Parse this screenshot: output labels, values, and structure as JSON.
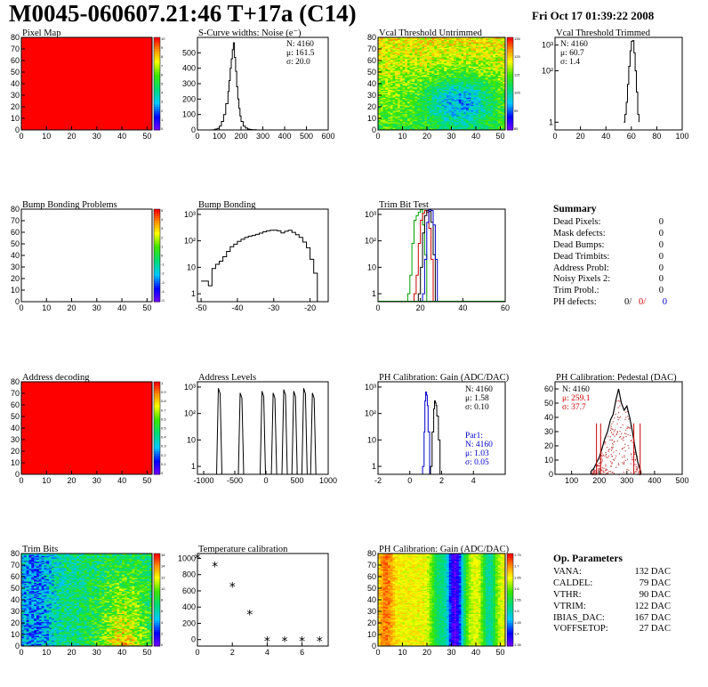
{
  "header": {
    "title": "M0045-060607.21:46 T+17a (C14)",
    "date": "Fri Oct 17 01:39:22 2008"
  },
  "panels": {
    "pixel_map": {
      "title": "Pixel Map",
      "fill": "#ff0000",
      "xticks": [
        "0",
        "10",
        "20",
        "30",
        "40",
        "50"
      ],
      "yticks": [
        "0",
        "10",
        "20",
        "30",
        "40",
        "50",
        "60",
        "70",
        "80"
      ],
      "palette_labels": [
        "10",
        "9",
        "8",
        "7",
        "6",
        "5",
        "4",
        "3",
        "2",
        "1",
        "0"
      ]
    },
    "scurve": {
      "title": "S-Curve widths: Noise (e⁻)",
      "stats": [
        "N: 4160",
        "μ: 161.5",
        "σ: 20.0"
      ],
      "xticks": [
        "0",
        "100",
        "200",
        "300",
        "400",
        "500",
        "600"
      ],
      "yticks": [
        "0",
        "100",
        "200",
        "300",
        "400",
        "500"
      ]
    },
    "vcal_untrimmed": {
      "title": "Vcal Threshold Untrimmed",
      "xticks": [
        "0",
        "10",
        "20",
        "30",
        "40",
        "50"
      ],
      "yticks": [
        "0",
        "10",
        "20",
        "30",
        "40",
        "50",
        "60",
        "70",
        "80"
      ],
      "palette_labels": [
        "135",
        "125",
        "115",
        "105",
        "95",
        "85"
      ]
    },
    "vcal_trimmed": {
      "title": "Vcal Threshold Trimmed",
      "stats": [
        "N: 4160",
        "μ: 60.7",
        "σ:  1.4"
      ],
      "xticks": [
        "0",
        "20",
        "40",
        "60",
        "80",
        "100"
      ],
      "yticks": [
        "1",
        "10²",
        "10³"
      ]
    },
    "bump_problems": {
      "title": "Bump Bonding Problems",
      "xticks": [
        "0",
        "10",
        "20",
        "30",
        "40",
        "50"
      ],
      "yticks": [
        "0",
        "10",
        "20",
        "30",
        "40",
        "50",
        "60",
        "70",
        "80"
      ],
      "palette_labels": [
        "5",
        "4",
        "3",
        "2",
        "1",
        "0",
        "-1",
        "-2",
        "-3",
        "-4",
        "-5"
      ]
    },
    "bump_bonding": {
      "title": "Bump Bonding",
      "xticks": [
        "-50",
        "-40",
        "-30",
        "-20"
      ],
      "yticks": [
        "1",
        "10",
        "10²",
        "10³"
      ]
    },
    "trim_bit_test": {
      "title": "Trim Bit Test",
      "xticks": [
        "0",
        "20",
        "40",
        "60"
      ],
      "yticks": [
        "1",
        "10",
        "10²",
        "10³"
      ]
    },
    "address_decoding": {
      "title": "Address decoding",
      "fill": "#ff0000",
      "xticks": [
        "0",
        "10",
        "20",
        "30",
        "40",
        "50"
      ],
      "yticks": [
        "0",
        "10",
        "20",
        "30",
        "40",
        "50",
        "60",
        "70",
        "80"
      ],
      "palette_labels": [
        "1",
        "0.9",
        "0.8",
        "0.7",
        "0.6",
        "0.5",
        "0.4",
        "0.3",
        "0.2",
        "0.1",
        "0"
      ]
    },
    "address_levels": {
      "title": "Address Levels",
      "xticks": [
        "-1000",
        "-500",
        "0",
        "500",
        "1000"
      ],
      "yticks": [
        "1",
        "10",
        "10²",
        "10³"
      ]
    },
    "ph_gain": {
      "title": "PH Calibration: Gain (ADC/DAC)",
      "stats": [
        "N: 4160",
        "μ: 1.58",
        "σ: 0.10"
      ],
      "stats2": [
        "Par1:",
        "N: 4160",
        "μ: 1.03",
        "σ: 0.05"
      ],
      "xticks": [
        "-2",
        "0",
        "2",
        "4"
      ],
      "yticks": [
        "1",
        "10",
        "10²",
        "10³"
      ]
    },
    "ph_pedestal": {
      "title": "PH Calibration: Pedestal (DAC)",
      "stats": [
        "N: 4160"
      ],
      "stats_red": [
        "μ: 259.1",
        "σ: 37.7"
      ],
      "xticks": [
        "100",
        "200",
        "300",
        "400",
        "500"
      ],
      "yticks": [
        "0",
        "10",
        "20",
        "30",
        "40",
        "50",
        "60"
      ]
    },
    "trim_bits": {
      "title": "Trim Bits",
      "xticks": [
        "0",
        "10",
        "20",
        "30",
        "40",
        "50"
      ],
      "yticks": [
        "0",
        "10",
        "20",
        "30",
        "40",
        "50",
        "60",
        "70",
        "80"
      ],
      "palette_labels": [
        "16",
        "14",
        "12",
        "10",
        "8",
        "6",
        "4",
        "2",
        "0"
      ]
    },
    "temperature": {
      "title": "Temperature calibration",
      "xticks": [
        "0",
        "2",
        "4",
        "6"
      ],
      "yticks": [
        "0",
        "200",
        "400",
        "600",
        "800",
        "1000"
      ]
    },
    "ph_gain_map": {
      "title": "PH Calibration: Gain (ADC/DAC)",
      "xticks": [
        "0",
        "10",
        "20",
        "30",
        "40",
        "50"
      ],
      "yticks": [
        "0",
        "10",
        "20",
        "30",
        "40",
        "50",
        "60",
        "70",
        "80"
      ],
      "palette_labels": [
        "1.75",
        "1.7",
        "1.65",
        "1.6",
        "1.55",
        "1.5",
        "1.45",
        "1.4",
        "1.35"
      ]
    }
  },
  "summary": {
    "heading": "Summary",
    "rows": [
      {
        "label": "Dead Pixels:",
        "value": "0"
      },
      {
        "label": "Mask defects:",
        "value": "0"
      },
      {
        "label": "Dead Bumps:",
        "value": "0"
      },
      {
        "label": "Dead Trimbits:",
        "value": "0"
      },
      {
        "label": "Address Probl:",
        "value": "0"
      },
      {
        "label": "Noisy Pixels 2:",
        "value": "0"
      },
      {
        "label": "Trim Probl.:",
        "value": "0"
      }
    ],
    "ph_label": "PH defects:",
    "ph_values": [
      "0/",
      "0/",
      "0"
    ],
    "ph_colors": [
      "#000000",
      "#cc0000",
      "#0000cc"
    ]
  },
  "op_params": {
    "heading": "Op. Parameters",
    "rows": [
      {
        "label": "VANA:",
        "value": "132 DAC"
      },
      {
        "label": "CALDEL:",
        "value": "79 DAC"
      },
      {
        "label": "VTHR:",
        "value": "90 DAC"
      },
      {
        "label": "VTRIM:",
        "value": "122 DAC"
      },
      {
        "label": "IBIAS_DAC:",
        "value": "167 DAC"
      },
      {
        "label": "VOFFSETOP:",
        "value": "27 DAC"
      }
    ]
  },
  "chart_data": [
    {
      "type": "heatmap",
      "title": "Pixel Map",
      "xlim": [
        0,
        52
      ],
      "ylim": [
        0,
        80
      ],
      "uniform_value": 10
    },
    {
      "type": "line",
      "title": "S-Curve widths: Noise (e⁻)",
      "xlim": [
        0,
        600
      ],
      "ylim": [
        0,
        600
      ],
      "x": [
        60,
        70,
        80,
        90,
        100,
        110,
        120,
        130,
        140,
        145,
        150,
        155,
        160,
        165,
        170,
        175,
        180,
        185,
        190,
        195,
        200,
        210,
        220,
        230,
        240,
        250,
        260,
        270
      ],
      "y": [
        0,
        2,
        5,
        10,
        25,
        55,
        100,
        170,
        250,
        320,
        400,
        460,
        520,
        565,
        470,
        380,
        280,
        200,
        140,
        90,
        55,
        25,
        12,
        6,
        3,
        2,
        1,
        0
      ]
    },
    {
      "type": "heatmap",
      "title": "Vcal Threshold Untrimmed",
      "xlim": [
        0,
        52
      ],
      "ylim": [
        0,
        80
      ],
      "zlim": [
        85,
        135
      ]
    },
    {
      "type": "line",
      "title": "Vcal Threshold Trimmed",
      "xlim": [
        0,
        100
      ],
      "log_y": true,
      "x": [
        54,
        55,
        56,
        57,
        58,
        59,
        60,
        61,
        62,
        63,
        64,
        65,
        66
      ],
      "y": [
        1,
        2,
        6,
        30,
        150,
        600,
        1400,
        1500,
        500,
        100,
        15,
        2,
        1
      ]
    },
    {
      "type": "heatmap",
      "title": "Bump Bonding Problems",
      "xlim": [
        0,
        52
      ],
      "ylim": [
        0,
        80
      ],
      "zlim": [
        -5,
        5
      ],
      "empty": true
    },
    {
      "type": "line",
      "title": "Bump Bonding",
      "xlim": [
        -51,
        -15
      ],
      "log_y": true,
      "x": [
        -50,
        -49,
        -48,
        -47,
        -46,
        -45,
        -44,
        -43,
        -42,
        -41,
        -40,
        -39,
        -38,
        -37,
        -36,
        -35,
        -34,
        -33,
        -32,
        -31,
        -30,
        -29,
        -28,
        -27,
        -26,
        -25,
        -24,
        -23,
        -22,
        -21,
        -20,
        -19,
        -18
      ],
      "y": [
        3,
        3,
        2,
        9,
        13,
        17,
        25,
        40,
        60,
        75,
        95,
        115,
        135,
        150,
        160,
        175,
        195,
        220,
        240,
        250,
        255,
        240,
        200,
        230,
        250,
        210,
        170,
        135,
        90,
        55,
        20,
        6,
        1
      ]
    },
    {
      "type": "line",
      "title": "Trim Bit Test",
      "xlim": [
        0,
        60
      ],
      "log_y": true,
      "series": [
        {
          "color": "#00a000",
          "x": [
            14,
            15,
            16,
            17,
            18,
            19,
            20,
            21,
            22,
            23
          ],
          "y": [
            1,
            5,
            80,
            600,
            900,
            1200,
            1500,
            400,
            30,
            1
          ]
        },
        {
          "color": "#cc0000",
          "x": [
            17,
            18,
            19,
            20,
            21,
            22,
            23,
            24,
            25,
            26
          ],
          "y": [
            1,
            5,
            80,
            600,
            1100,
            1400,
            1200,
            300,
            20,
            1
          ]
        },
        {
          "color": "#000000",
          "x": [
            19,
            20,
            21,
            22,
            23,
            24,
            25,
            26,
            27
          ],
          "y": [
            1,
            10,
            200,
            900,
            1400,
            1300,
            500,
            30,
            1
          ]
        },
        {
          "color": "#0000cc",
          "x": [
            21,
            22,
            23,
            24,
            25,
            26,
            27,
            28
          ],
          "y": [
            1,
            20,
            500,
            1500,
            1400,
            400,
            20,
            1
          ]
        }
      ]
    },
    {
      "type": "heatmap",
      "title": "Address decoding",
      "xlim": [
        0,
        52
      ],
      "ylim": [
        0,
        80
      ],
      "uniform_value": 1
    },
    {
      "type": "line",
      "title": "Address Levels",
      "xlim": [
        -1100,
        1000
      ],
      "log_y": true,
      "peaks": [
        -750,
        -400,
        -50,
        130,
        300,
        460,
        620,
        760
      ],
      "peak_heights": [
        900,
        600,
        700,
        600,
        800,
        700,
        900,
        600
      ]
    },
    {
      "type": "line",
      "title": "PH Calibration: Gain (ADC/DAC)",
      "xlim": [
        -2,
        6
      ],
      "log_y": true,
      "series": [
        {
          "name": "Par1",
          "color": "#0000cc",
          "x": [
            0.8,
            0.9,
            0.95,
            1.0,
            1.05,
            1.1,
            1.15,
            1.25
          ],
          "y": [
            1,
            20,
            300,
            650,
            500,
            200,
            20,
            1
          ]
        },
        {
          "color": "#000000",
          "x": [
            1.3,
            1.4,
            1.5,
            1.55,
            1.6,
            1.65,
            1.7,
            1.8,
            1.9
          ],
          "y": [
            1,
            20,
            150,
            300,
            250,
            200,
            80,
            10,
            1
          ]
        }
      ]
    },
    {
      "type": "line",
      "title": "PH Calibration: Pedestal (DAC)",
      "xlim": [
        40,
        500
      ],
      "ylim": [
        0,
        65
      ],
      "x": [
        170,
        180,
        190,
        200,
        210,
        220,
        230,
        240,
        250,
        260,
        270,
        280,
        290,
        300,
        310,
        320,
        330,
        340,
        350
      ],
      "y": [
        2,
        4,
        8,
        12,
        18,
        25,
        30,
        38,
        42,
        52,
        60,
        50,
        45,
        48,
        40,
        30,
        18,
        8,
        2
      ]
    },
    {
      "type": "heatmap",
      "title": "Trim Bits",
      "xlim": [
        0,
        52
      ],
      "ylim": [
        0,
        80
      ],
      "zlim": [
        0,
        16
      ]
    },
    {
      "type": "scatter",
      "title": "Temperature calibration",
      "xlim": [
        0,
        7.5
      ],
      "ylim": [
        -80,
        1060
      ],
      "x": [
        0,
        1,
        2,
        3,
        4,
        5,
        6,
        7
      ],
      "y": [
        1000,
        900,
        650,
        310,
        -20,
        -20,
        -20,
        -20
      ]
    },
    {
      "type": "heatmap",
      "title": "PH Calibration: Gain (ADC/DAC)",
      "xlim": [
        0,
        52
      ],
      "ylim": [
        0,
        80
      ],
      "zlim": [
        1.35,
        1.75
      ]
    }
  ]
}
